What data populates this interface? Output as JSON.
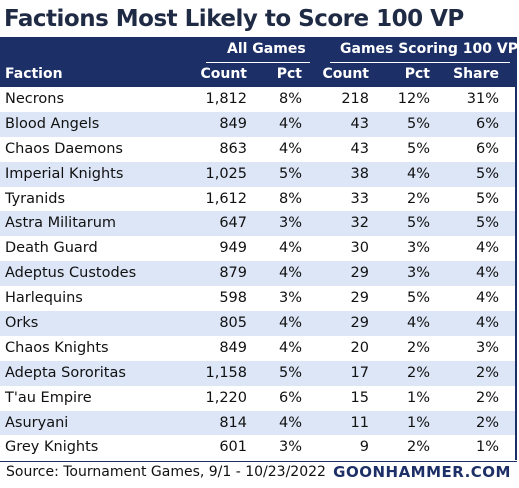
{
  "title": "Factions Most Likely to Score 100 VP",
  "header": {
    "group_all": "All Games",
    "group_scoring": "Games Scoring 100 VP",
    "col_faction": "Faction",
    "col_count": "Count",
    "col_pct": "Pct",
    "col_s_count": "Count",
    "col_s_pct": "Pct",
    "col_share": "Share"
  },
  "rows": [
    {
      "faction": "Necrons",
      "count": "1,812",
      "pct": "8%",
      "s_count": "218",
      "s_pct": "12%",
      "share": "31%"
    },
    {
      "faction": "Blood Angels",
      "count": "849",
      "pct": "4%",
      "s_count": "43",
      "s_pct": "5%",
      "share": "6%"
    },
    {
      "faction": "Chaos Daemons",
      "count": "863",
      "pct": "4%",
      "s_count": "43",
      "s_pct": "5%",
      "share": "6%"
    },
    {
      "faction": "Imperial Knights",
      "count": "1,025",
      "pct": "5%",
      "s_count": "38",
      "s_pct": "4%",
      "share": "5%"
    },
    {
      "faction": "Tyranids",
      "count": "1,612",
      "pct": "8%",
      "s_count": "33",
      "s_pct": "2%",
      "share": "5%"
    },
    {
      "faction": "Astra Militarum",
      "count": "647",
      "pct": "3%",
      "s_count": "32",
      "s_pct": "5%",
      "share": "5%"
    },
    {
      "faction": "Death Guard",
      "count": "949",
      "pct": "4%",
      "s_count": "30",
      "s_pct": "3%",
      "share": "4%"
    },
    {
      "faction": "Adeptus Custodes",
      "count": "879",
      "pct": "4%",
      "s_count": "29",
      "s_pct": "3%",
      "share": "4%"
    },
    {
      "faction": "Harlequins",
      "count": "598",
      "pct": "3%",
      "s_count": "29",
      "s_pct": "5%",
      "share": "4%"
    },
    {
      "faction": "Orks",
      "count": "805",
      "pct": "4%",
      "s_count": "29",
      "s_pct": "4%",
      "share": "4%"
    },
    {
      "faction": "Chaos Knights",
      "count": "849",
      "pct": "4%",
      "s_count": "20",
      "s_pct": "2%",
      "share": "3%"
    },
    {
      "faction": "Adepta Sororitas",
      "count": "1,158",
      "pct": "5%",
      "s_count": "17",
      "s_pct": "2%",
      "share": "2%"
    },
    {
      "faction": "T'au Empire",
      "count": "1,220",
      "pct": "6%",
      "s_count": "15",
      "s_pct": "1%",
      "share": "2%"
    },
    {
      "faction": "Asuryani",
      "count": "814",
      "pct": "4%",
      "s_count": "11",
      "s_pct": "1%",
      "share": "2%"
    },
    {
      "faction": "Grey Knights",
      "count": "601",
      "pct": "3%",
      "s_count": "9",
      "s_pct": "2%",
      "share": "1%"
    }
  ],
  "footer": {
    "source": "Source: Tournament Games, 9/1 - 10/23/2022",
    "brand": "GOONHAMMER.COM"
  },
  "colors": {
    "header_bg": "#1d2f67",
    "alt_row_bg": "#dce6f6",
    "title_color": "#1f2a44"
  }
}
